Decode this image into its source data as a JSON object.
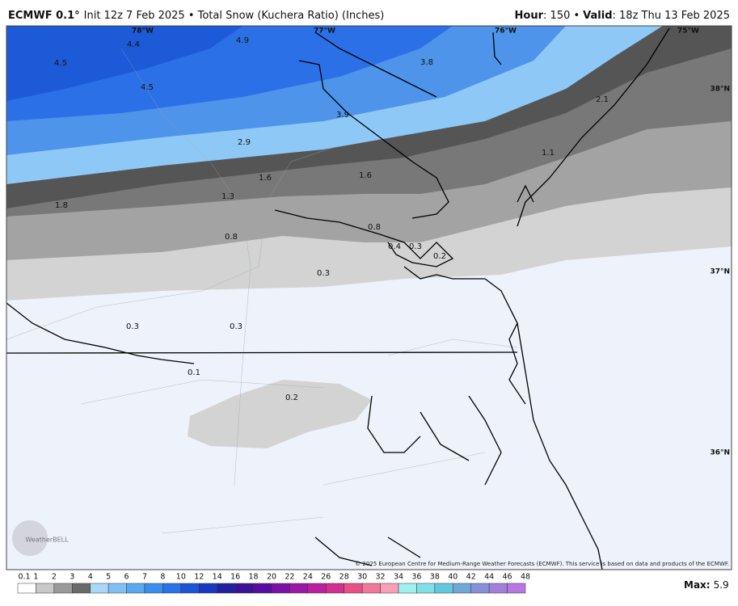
{
  "header": {
    "model": "ECMWF 0.1°",
    "run": "Init 12z 7 Feb 2025 • Total Snow (Kuchera Ratio) (Inches)",
    "hour_label": "Hour",
    "hour": ": 150 •",
    "valid_label": "Valid",
    "valid": ": 18z Thu 13 Feb 2025"
  },
  "map": {
    "labels": [
      "4.4",
      "4.9",
      "4.5",
      "4.5",
      "3.8",
      "3.9",
      "2.1",
      "2.9",
      "1.1",
      "1.6",
      "1.6",
      "1.3",
      "1.8",
      "0.8",
      "0.8",
      "0.4",
      "0.3",
      "0.2",
      "0.3",
      "0.3",
      "0.3",
      "0.1",
      "0.2"
    ],
    "coordinates": [
      "78°W",
      "77°W",
      "76°W",
      "75°W",
      "38°N",
      "37°N",
      "36°N"
    ],
    "watermark": "WeatherBELL",
    "credit": "© 2025 European Centre for Medium-Range Weather Forecasts (ECMWF). This service is based on data and products of the ECMWF."
  },
  "legend": {
    "ticks": [
      "0.1",
      "1",
      "2",
      "3",
      "4",
      "5",
      "6",
      "7",
      "8",
      "10",
      "12",
      "14",
      "16",
      "18",
      "20",
      "22",
      "24",
      "26",
      "28",
      "30",
      "32",
      "34",
      "36",
      "38",
      "40",
      "42",
      "44",
      "46",
      "48"
    ],
    "max_label": "Max:",
    "max": "5.9"
  }
}
